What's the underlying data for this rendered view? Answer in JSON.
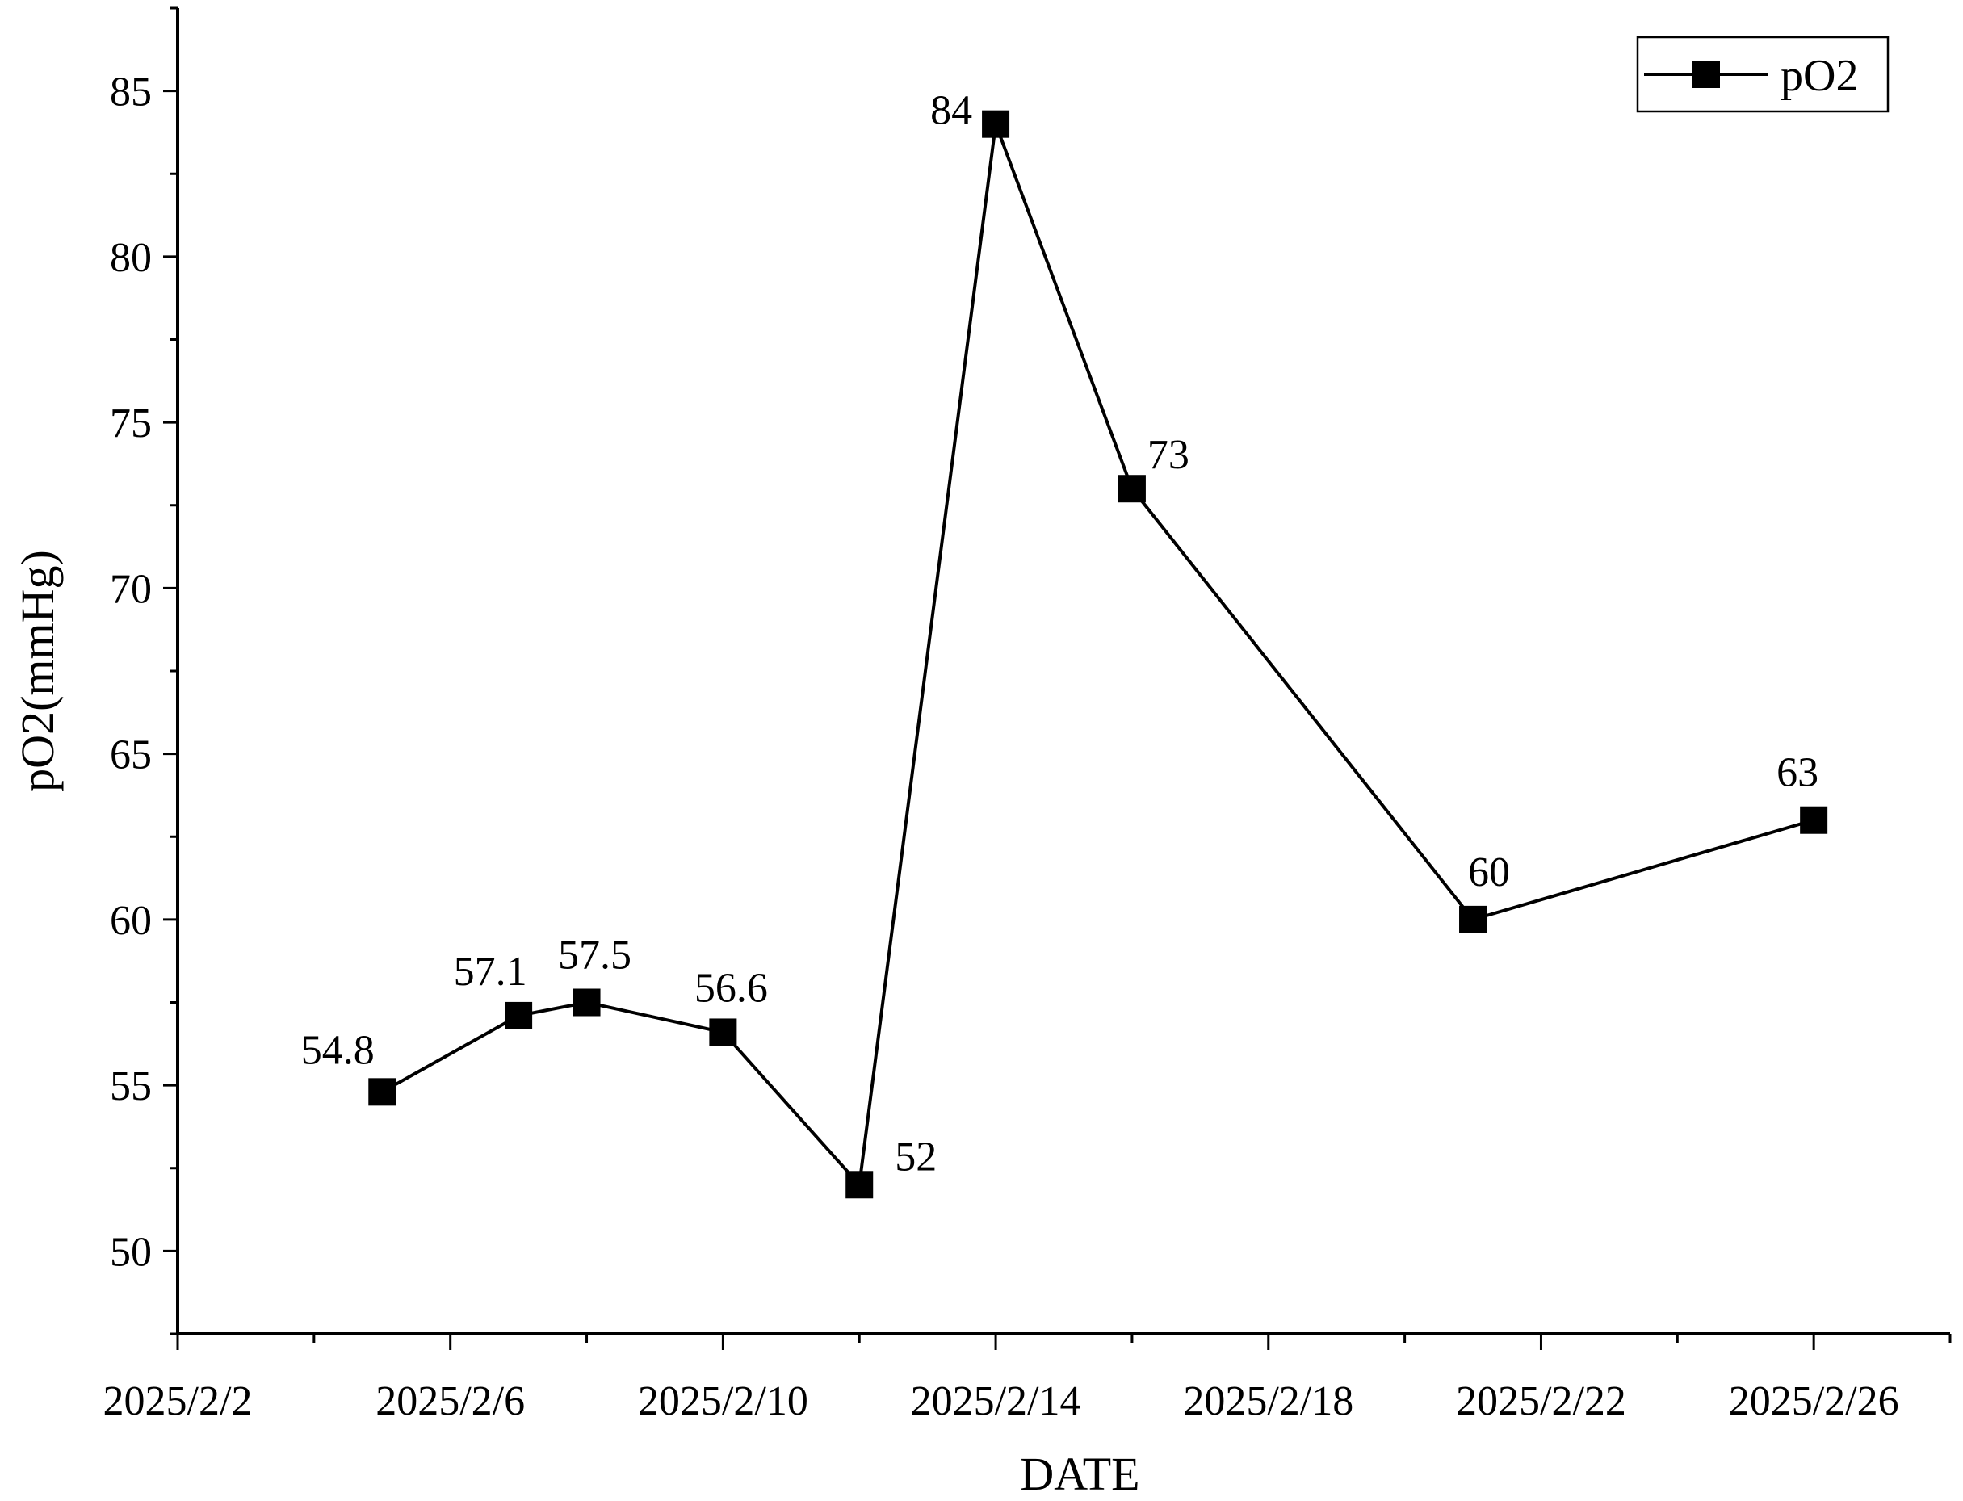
{
  "chart_data": {
    "type": "line",
    "xlabel": "DATE",
    "ylabel": "pO2(mmHg)",
    "ylim": [
      47.5,
      87.5
    ],
    "yticks": [
      50,
      55,
      60,
      65,
      70,
      75,
      80,
      85
    ],
    "xlim": [
      "2025/2/2",
      "2025/2/28"
    ],
    "xticks": [
      "2025/2/2",
      "2025/2/6",
      "2025/2/10",
      "2025/2/14",
      "2025/2/18",
      "2025/2/22",
      "2025/2/26"
    ],
    "xtick_labels": [
      "2025/2/2",
      "2025/2/6",
      "2025/2/10",
      "2025/2/14",
      "2025/2/18",
      "2025/2/22",
      "2025/2/26"
    ],
    "x": [
      "2025/2/5",
      "2025/2/7",
      "2025/2/8",
      "2025/2/10",
      "2025/2/12",
      "2025/2/14",
      "2025/2/16",
      "2025/2/21",
      "2025/2/26"
    ],
    "series": [
      {
        "name": "pO2",
        "values": [
          54.8,
          57.1,
          57.5,
          56.6,
          52,
          84,
          73,
          60,
          63
        ],
        "data_labels": [
          "54.8",
          "57.1",
          "57.5",
          "56.6",
          "52",
          "84",
          "73",
          "60",
          "63"
        ],
        "color": "#000000",
        "marker": "square"
      }
    ],
    "legend": {
      "position": "top-right",
      "entries": [
        "pO2"
      ]
    },
    "grid": false
  }
}
